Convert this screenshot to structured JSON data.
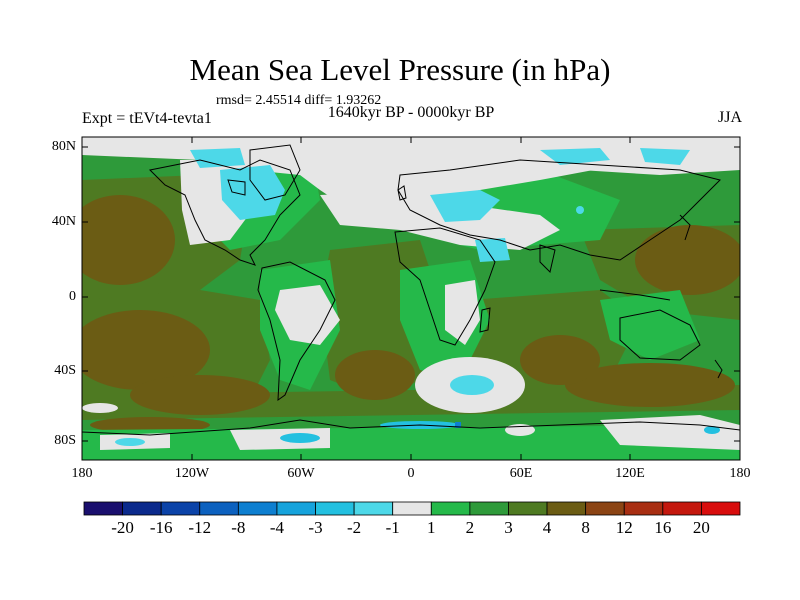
{
  "title": "Mean Sea Level Pressure (in hPa)",
  "stats": "rmsd= 2.45514  diff= 1.93262",
  "subtitle_left": "Expt = tEVt4-tevta1",
  "subtitle_center": "1640kyr BP - 0000kyr BP",
  "subtitle_right": "JJA",
  "lat_labels": [
    "80N",
    "40N",
    "0",
    "40S",
    "80S"
  ],
  "lon_labels": [
    "180",
    "120W",
    "60W",
    "0",
    "60E",
    "120E",
    "180"
  ],
  "colorbar": {
    "labels": [
      "-20",
      "-16",
      "-12",
      "-8",
      "-4",
      "-3",
      "-2",
      "-1",
      "1",
      "2",
      "3",
      "4",
      "8",
      "12",
      "16",
      "20"
    ],
    "colors": [
      "#1a0f6e",
      "#0b2a8c",
      "#0b43a8",
      "#0c61bf",
      "#0e7fd0",
      "#16a3dc",
      "#23c0e0",
      "#4dd8e8",
      "#e6e6e6",
      "#25b94a",
      "#2e9a3a",
      "#4e7a22",
      "#6b5c14",
      "#8b4414",
      "#a82e12",
      "#c4180e",
      "#d80d0d"
    ]
  },
  "colors": {
    "land_outline": "#000000",
    "neutral": "#e6e6e6",
    "green_light": "#25b94a",
    "green_mid": "#2e9a3a",
    "olive": "#4e7a22",
    "brown": "#6b5c14",
    "cyan": "#4dd8e8",
    "cyan_dark": "#23c0e0",
    "blue": "#0e7fd0"
  }
}
